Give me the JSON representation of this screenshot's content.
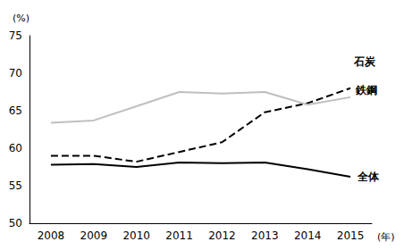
{
  "chart_data": {
    "type": "line",
    "x_label": "(年)",
    "y_label": "(%)",
    "categories": [
      "2008",
      "2009",
      "2010",
      "2011",
      "2012",
      "2013",
      "2014",
      "2015"
    ],
    "series": [
      {
        "name": "石炭",
        "color": "#000000",
        "line_style": "dashed",
        "values": [
          59.0,
          59.0,
          58.2,
          59.5,
          60.8,
          64.8,
          66.0,
          68.0
        ]
      },
      {
        "name": "鉄鋼",
        "color": "#bfbfbf",
        "line_style": "solid",
        "values": [
          63.4,
          63.7,
          65.6,
          67.5,
          67.3,
          67.5,
          65.8,
          66.8
        ]
      },
      {
        "name": "全体",
        "color": "#000000",
        "line_style": "solid",
        "values": [
          57.8,
          57.9,
          57.5,
          58.1,
          58.0,
          58.1,
          57.2,
          56.2
        ]
      }
    ],
    "ylim": [
      50,
      75
    ],
    "yticks": [
      50,
      55,
      60,
      65,
      70,
      75
    ],
    "grid": false
  }
}
